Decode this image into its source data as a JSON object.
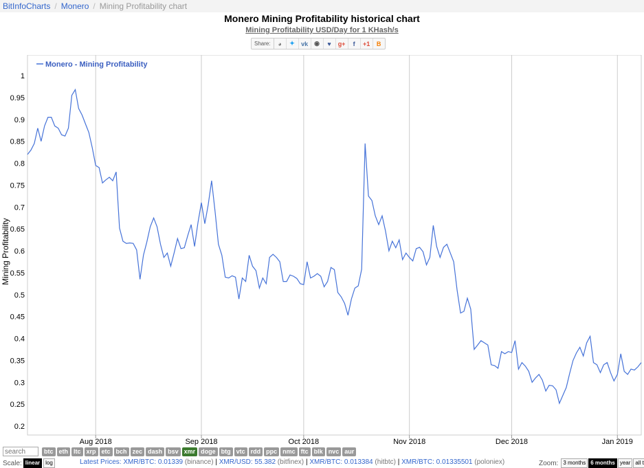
{
  "breadcrumb": [
    "BitInfoCharts",
    "Monero",
    "Mining Profitability chart"
  ],
  "title": "Monero Mining Profitability historical chart",
  "subtitle": "Mining Profitability USD/Day for 1 KHash/s",
  "share": {
    "label": "Share:",
    "icons": [
      {
        "name": "reddit-icon",
        "glyph": "◕",
        "color": "#777"
      },
      {
        "name": "twitter-icon",
        "glyph": "✦",
        "color": "#1da1f2"
      },
      {
        "name": "vk-icon",
        "glyph": "vk",
        "color": "#4a76a8"
      },
      {
        "name": "weibo-icon",
        "glyph": "◉",
        "color": "#555"
      },
      {
        "name": "like-icon",
        "glyph": "♥",
        "color": "#3b5998"
      },
      {
        "name": "googleplus-icon",
        "glyph": "g+",
        "color": "#dd4b39"
      },
      {
        "name": "facebook-icon",
        "glyph": "f",
        "color": "#3b5998"
      },
      {
        "name": "gplusone-icon",
        "glyph": "+1",
        "color": "#dd4b39"
      },
      {
        "name": "blogger-icon",
        "glyph": "B",
        "color": "#f57d00"
      }
    ]
  },
  "chart_data": {
    "type": "line",
    "ylabel": "Mining Profitability",
    "ylim": [
      0.2,
      1.0
    ],
    "yticks": [
      "1",
      "0.95",
      "0.9",
      "0.85",
      "0.8",
      "0.75",
      "0.7",
      "0.65",
      "0.6",
      "0.55",
      "0.5",
      "0.45",
      "0.4",
      "0.35",
      "0.3",
      "0.25",
      "0.2"
    ],
    "x_month_ticks": [
      {
        "label": "Aug 2018",
        "date": "2018-08-01"
      },
      {
        "label": "Sep 2018",
        "date": "2018-09-01"
      },
      {
        "label": "Oct 2018",
        "date": "2018-10-01"
      },
      {
        "label": "Nov 2018",
        "date": "2018-11-01"
      },
      {
        "label": "Dec 2018",
        "date": "2018-12-01"
      },
      {
        "label": "Jan 2019",
        "date": "2019-01-01"
      }
    ],
    "x_range": [
      "2018-07-12",
      "2019-01-08"
    ],
    "legend": "top-left",
    "series": [
      {
        "name": "Monero - Mining Profitability",
        "color": "#4572d8",
        "points": [
          [
            "2018-07-12",
            0.82
          ],
          [
            "2018-07-13",
            0.83
          ],
          [
            "2018-07-14",
            0.845
          ],
          [
            "2018-07-15",
            0.88
          ],
          [
            "2018-07-16",
            0.85
          ],
          [
            "2018-07-17",
            0.885
          ],
          [
            "2018-07-18",
            0.905
          ],
          [
            "2018-07-19",
            0.905
          ],
          [
            "2018-07-20",
            0.885
          ],
          [
            "2018-07-21",
            0.88
          ],
          [
            "2018-07-22",
            0.865
          ],
          [
            "2018-07-23",
            0.862
          ],
          [
            "2018-07-24",
            0.88
          ],
          [
            "2018-07-25",
            0.955
          ],
          [
            "2018-07-26",
            0.968
          ],
          [
            "2018-07-27",
            0.925
          ],
          [
            "2018-07-28",
            0.91
          ],
          [
            "2018-07-29",
            0.89
          ],
          [
            "2018-07-30",
            0.87
          ],
          [
            "2018-07-31",
            0.835
          ],
          [
            "2018-08-01",
            0.795
          ],
          [
            "2018-08-02",
            0.79
          ],
          [
            "2018-08-03",
            0.755
          ],
          [
            "2018-08-04",
            0.762
          ],
          [
            "2018-08-05",
            0.768
          ],
          [
            "2018-08-06",
            0.76
          ],
          [
            "2018-08-07",
            0.78
          ],
          [
            "2018-08-08",
            0.652
          ],
          [
            "2018-08-09",
            0.622
          ],
          [
            "2018-08-10",
            0.617
          ],
          [
            "2018-08-11",
            0.618
          ],
          [
            "2018-08-12",
            0.617
          ],
          [
            "2018-08-13",
            0.602
          ],
          [
            "2018-08-14",
            0.535
          ],
          [
            "2018-08-15",
            0.59
          ],
          [
            "2018-08-16",
            0.62
          ],
          [
            "2018-08-17",
            0.655
          ],
          [
            "2018-08-18",
            0.675
          ],
          [
            "2018-08-19",
            0.655
          ],
          [
            "2018-08-20",
            0.615
          ],
          [
            "2018-08-21",
            0.585
          ],
          [
            "2018-08-22",
            0.595
          ],
          [
            "2018-08-23",
            0.565
          ],
          [
            "2018-08-24",
            0.595
          ],
          [
            "2018-08-25",
            0.628
          ],
          [
            "2018-08-26",
            0.605
          ],
          [
            "2018-08-27",
            0.607
          ],
          [
            "2018-08-28",
            0.635
          ],
          [
            "2018-08-29",
            0.66
          ],
          [
            "2018-08-30",
            0.61
          ],
          [
            "2018-08-31",
            0.665
          ],
          [
            "2018-09-01",
            0.71
          ],
          [
            "2018-09-02",
            0.662
          ],
          [
            "2018-09-03",
            0.705
          ],
          [
            "2018-09-04",
            0.76
          ],
          [
            "2018-09-05",
            0.69
          ],
          [
            "2018-09-06",
            0.615
          ],
          [
            "2018-09-07",
            0.59
          ],
          [
            "2018-09-08",
            0.54
          ],
          [
            "2018-09-09",
            0.538
          ],
          [
            "2018-09-10",
            0.543
          ],
          [
            "2018-09-11",
            0.54
          ],
          [
            "2018-09-12",
            0.49
          ],
          [
            "2018-09-13",
            0.538
          ],
          [
            "2018-09-14",
            0.53
          ],
          [
            "2018-09-15",
            0.59
          ],
          [
            "2018-09-16",
            0.565
          ],
          [
            "2018-09-17",
            0.555
          ],
          [
            "2018-09-18",
            0.515
          ],
          [
            "2018-09-19",
            0.538
          ],
          [
            "2018-09-20",
            0.525
          ],
          [
            "2018-09-21",
            0.585
          ],
          [
            "2018-09-22",
            0.592
          ],
          [
            "2018-09-23",
            0.585
          ],
          [
            "2018-09-24",
            0.575
          ],
          [
            "2018-09-25",
            0.53
          ],
          [
            "2018-09-26",
            0.53
          ],
          [
            "2018-09-27",
            0.545
          ],
          [
            "2018-09-28",
            0.542
          ],
          [
            "2018-09-29",
            0.537
          ],
          [
            "2018-09-30",
            0.525
          ],
          [
            "2018-10-01",
            0.523
          ],
          [
            "2018-10-02",
            0.575
          ],
          [
            "2018-10-03",
            0.538
          ],
          [
            "2018-10-04",
            0.542
          ],
          [
            "2018-10-05",
            0.548
          ],
          [
            "2018-10-06",
            0.542
          ],
          [
            "2018-10-07",
            0.518
          ],
          [
            "2018-10-08",
            0.53
          ],
          [
            "2018-10-09",
            0.562
          ],
          [
            "2018-10-10",
            0.557
          ],
          [
            "2018-10-11",
            0.505
          ],
          [
            "2018-10-12",
            0.495
          ],
          [
            "2018-10-13",
            0.48
          ],
          [
            "2018-10-14",
            0.453
          ],
          [
            "2018-10-15",
            0.49
          ],
          [
            "2018-10-16",
            0.515
          ],
          [
            "2018-10-17",
            0.52
          ],
          [
            "2018-10-18",
            0.558
          ],
          [
            "2018-10-19",
            0.845
          ],
          [
            "2018-10-20",
            0.725
          ],
          [
            "2018-10-21",
            0.715
          ],
          [
            "2018-10-22",
            0.68
          ],
          [
            "2018-10-23",
            0.66
          ],
          [
            "2018-10-24",
            0.68
          ],
          [
            "2018-10-25",
            0.645
          ],
          [
            "2018-10-26",
            0.6
          ],
          [
            "2018-10-27",
            0.622
          ],
          [
            "2018-10-28",
            0.607
          ],
          [
            "2018-10-29",
            0.625
          ],
          [
            "2018-10-30",
            0.58
          ],
          [
            "2018-10-31",
            0.595
          ],
          [
            "2018-11-01",
            0.585
          ],
          [
            "2018-11-02",
            0.577
          ],
          [
            "2018-11-03",
            0.605
          ],
          [
            "2018-11-04",
            0.608
          ],
          [
            "2018-11-05",
            0.598
          ],
          [
            "2018-11-06",
            0.568
          ],
          [
            "2018-11-07",
            0.585
          ],
          [
            "2018-11-08",
            0.658
          ],
          [
            "2018-11-09",
            0.61
          ],
          [
            "2018-11-10",
            0.585
          ],
          [
            "2018-11-11",
            0.608
          ],
          [
            "2018-11-12",
            0.615
          ],
          [
            "2018-11-13",
            0.595
          ],
          [
            "2018-11-14",
            0.575
          ],
          [
            "2018-11-15",
            0.51
          ],
          [
            "2018-11-16",
            0.458
          ],
          [
            "2018-11-17",
            0.462
          ],
          [
            "2018-11-18",
            0.492
          ],
          [
            "2018-11-19",
            0.467
          ],
          [
            "2018-11-20",
            0.375
          ],
          [
            "2018-11-21",
            0.385
          ],
          [
            "2018-11-22",
            0.395
          ],
          [
            "2018-11-23",
            0.39
          ],
          [
            "2018-11-24",
            0.385
          ],
          [
            "2018-11-25",
            0.34
          ],
          [
            "2018-11-26",
            0.338
          ],
          [
            "2018-11-27",
            0.332
          ],
          [
            "2018-11-28",
            0.37
          ],
          [
            "2018-11-29",
            0.365
          ],
          [
            "2018-11-30",
            0.37
          ],
          [
            "2018-12-01",
            0.368
          ],
          [
            "2018-12-02",
            0.395
          ],
          [
            "2018-12-03",
            0.33
          ],
          [
            "2018-12-04",
            0.345
          ],
          [
            "2018-12-05",
            0.337
          ],
          [
            "2018-12-06",
            0.325
          ],
          [
            "2018-12-07",
            0.3
          ],
          [
            "2018-12-08",
            0.31
          ],
          [
            "2018-12-09",
            0.318
          ],
          [
            "2018-12-10",
            0.305
          ],
          [
            "2018-12-11",
            0.28
          ],
          [
            "2018-12-12",
            0.293
          ],
          [
            "2018-12-13",
            0.292
          ],
          [
            "2018-12-14",
            0.283
          ],
          [
            "2018-12-15",
            0.252
          ],
          [
            "2018-12-16",
            0.27
          ],
          [
            "2018-12-17",
            0.288
          ],
          [
            "2018-12-18",
            0.32
          ],
          [
            "2018-12-19",
            0.35
          ],
          [
            "2018-12-20",
            0.367
          ],
          [
            "2018-12-21",
            0.38
          ],
          [
            "2018-12-22",
            0.36
          ],
          [
            "2018-12-23",
            0.39
          ],
          [
            "2018-12-24",
            0.405
          ],
          [
            "2018-12-25",
            0.345
          ],
          [
            "2018-12-26",
            0.34
          ],
          [
            "2018-12-27",
            0.322
          ],
          [
            "2018-12-28",
            0.34
          ],
          [
            "2018-12-29",
            0.345
          ],
          [
            "2018-12-30",
            0.322
          ],
          [
            "2018-12-31",
            0.303
          ],
          [
            "2019-01-01",
            0.318
          ],
          [
            "2019-01-02",
            0.365
          ],
          [
            "2019-01-03",
            0.325
          ],
          [
            "2019-01-04",
            0.318
          ],
          [
            "2019-01-05",
            0.33
          ],
          [
            "2019-01-06",
            0.328
          ],
          [
            "2019-01-07",
            0.335
          ],
          [
            "2019-01-08",
            0.345
          ]
        ]
      }
    ]
  },
  "search": {
    "placeholder": "search"
  },
  "coins": [
    "btc",
    "eth",
    "ltc",
    "xrp",
    "etc",
    "bch",
    "zec",
    "dash",
    "bsv",
    "xmr",
    "doge",
    "btg",
    "vtc",
    "rdd",
    "ppc",
    "nmc",
    "ftc",
    "blk",
    "nvc",
    "aur"
  ],
  "active_coin": "xmr",
  "scale": {
    "label": "Scale:",
    "options": [
      "linear",
      "log"
    ],
    "active": "linear"
  },
  "prices": {
    "label": "Latest Prices:",
    "items": [
      {
        "pair": "XMR/BTC: 0.01339",
        "src": "(binance)"
      },
      {
        "pair": "XMR/USD: 55.382",
        "src": "(bitfinex)"
      },
      {
        "pair": "XMR/BTC: 0.013384",
        "src": "(hitbtc)"
      },
      {
        "pair": "XMR/BTC: 0.01335501",
        "src": "(poloniex)"
      }
    ]
  },
  "zoom": {
    "label": "Zoom:",
    "options": [
      "3 months",
      "6 months",
      "year",
      "all time"
    ],
    "active": "6 months"
  }
}
